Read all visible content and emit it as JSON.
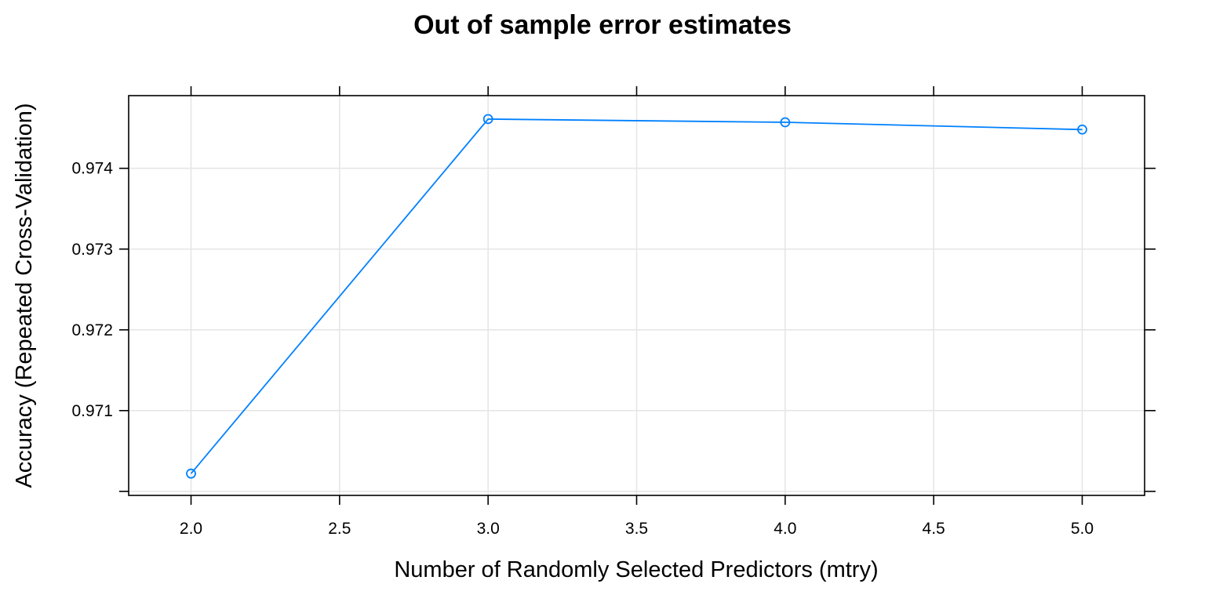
{
  "chart_data": {
    "type": "line",
    "title": "Out of sample error estimates",
    "xlabel": "Number of Randomly Selected Predictors (mtry)",
    "ylabel": "Accuracy (Repeated Cross-Validation)",
    "x": [
      2,
      3,
      4,
      5
    ],
    "series": [
      {
        "values": [
          0.97022,
          0.97461,
          0.97457,
          0.97448
        ],
        "color": "#0080ff",
        "marker": "open-circle"
      }
    ],
    "xlim": [
      1.79,
      5.21
    ],
    "ylim": [
      0.96995,
      0.9749
    ],
    "x_ticks": [
      2.0,
      2.5,
      3.0,
      3.5,
      4.0,
      4.5,
      5.0
    ],
    "x_tick_labels": [
      "2.0",
      "2.5",
      "3.0",
      "3.5",
      "4.0",
      "4.5",
      "5.0"
    ],
    "y_ticks": [
      0.97,
      0.971,
      0.972,
      0.973,
      0.974
    ],
    "y_tick_labels": [
      "",
      "0.971",
      "0.972",
      "0.973",
      "0.974"
    ],
    "grid": true,
    "grid_color": "#e6e6e6",
    "legend": "none"
  }
}
